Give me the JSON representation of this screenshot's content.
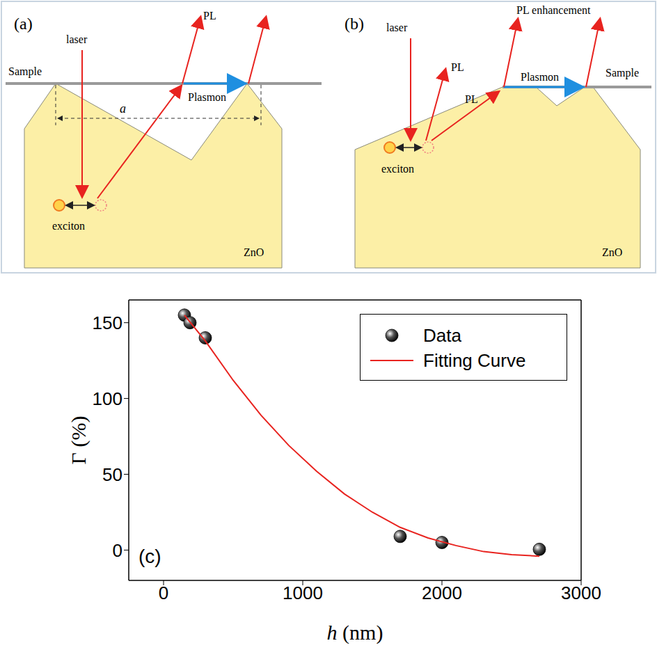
{
  "diagrams": [
    {
      "label": "(a)",
      "laser": "laser",
      "pl": "PL",
      "sample": "Sample",
      "plasmon": "Plasmon",
      "period": "a",
      "exciton": "exciton",
      "material": "ZnO"
    },
    {
      "label": "(b)",
      "laser": "laser",
      "pl_labels": [
        "PL",
        "PL"
      ],
      "pl_enhancement": "PL enhancement",
      "plasmon": "Plasmon",
      "sample": "Sample",
      "exciton": "exciton",
      "material": "ZnO"
    }
  ],
  "chart_data": {
    "type": "scatter",
    "annotations": [
      "(c)"
    ],
    "x_label": "h (nm)",
    "y_label": "Γ (%)",
    "xlim": [
      -250,
      3000
    ],
    "xticks": [
      0,
      1000,
      2000,
      3000
    ],
    "ylim": [
      -20,
      165
    ],
    "yticks": [
      0,
      50,
      100,
      150
    ],
    "legend": "upper right",
    "series": [
      {
        "name": "Data",
        "type": "scatter",
        "marker": "circle",
        "color": "#000000",
        "x": [
          150,
          190,
          300,
          1700,
          2000,
          2700
        ],
        "values": [
          155,
          150,
          140,
          9,
          5,
          0.5
        ]
      },
      {
        "name": "Fitting Curve",
        "type": "line",
        "line_style": "solid",
        "color": "#e8231f",
        "x": [
          150,
          300,
          500,
          700,
          900,
          1100,
          1300,
          1500,
          1700,
          1900,
          2100,
          2300,
          2500,
          2700
        ],
        "values": [
          155,
          138,
          112,
          89,
          69,
          52,
          37,
          25,
          15,
          8,
          3,
          -1,
          -3,
          -4
        ]
      }
    ]
  }
}
